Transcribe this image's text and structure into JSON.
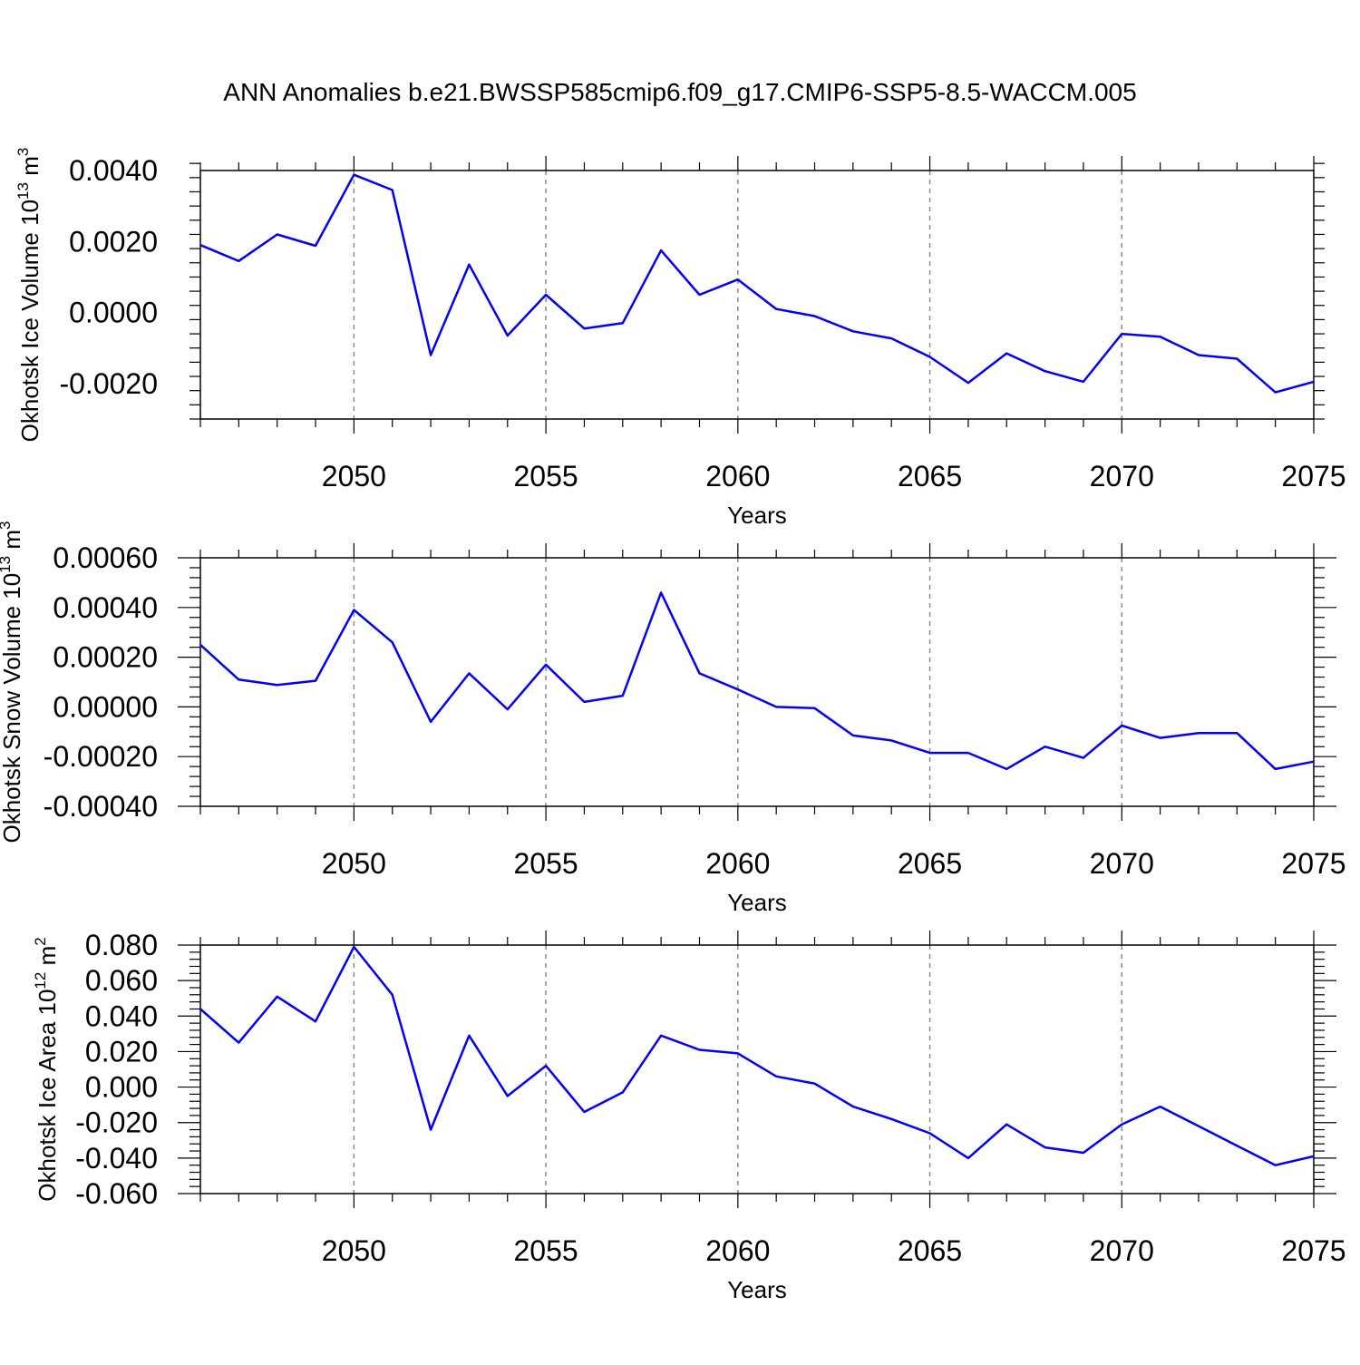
{
  "figure_title": "ANN Anomalies b.e21.BWSSP585cmip6.f09_g17.CMIP6-SSP5-8.5-WACCM.005",
  "line_color": "#0000ff",
  "grid_color": "#888888",
  "chart_data": [
    {
      "type": "line",
      "name": "ice-volume",
      "ylabel": "Okhotsk Ice Volume 10",
      "ylabel_exp": "13",
      "ylabel_unit": "m",
      "ylabel_unit_exp": "3",
      "xlabel": "Years",
      "xlim": [
        2046,
        2075
      ],
      "ylim": [
        -0.003,
        0.004
      ],
      "yticks": [
        0.004,
        0.002,
        0.0,
        -0.002
      ],
      "yticklabels": [
        "0.0040",
        "0.0020",
        "0.0000",
        "-0.0020"
      ],
      "xticks": [
        2050,
        2055,
        2060,
        2065,
        2070,
        2075
      ],
      "xticklabels": [
        "2050",
        "2055",
        "2060",
        "2065",
        "2070",
        "2075"
      ],
      "x": [
        2046,
        2047,
        2048,
        2049,
        2050,
        2051,
        2052,
        2053,
        2054,
        2055,
        2056,
        2057,
        2058,
        2059,
        2060,
        2061,
        2062,
        2063,
        2064,
        2065,
        2066,
        2067,
        2068,
        2069,
        2070,
        2071,
        2072,
        2073,
        2074,
        2075
      ],
      "y": [
        0.0019,
        0.00145,
        0.0022,
        0.00188,
        0.00388,
        0.00345,
        -0.0012,
        0.00135,
        -0.00065,
        0.0005,
        -0.00045,
        -0.0003,
        0.00175,
        0.0005,
        0.00093,
        0.0001,
        -0.0001,
        -0.00053,
        -0.00073,
        -0.00125,
        -0.00198,
        -0.00115,
        -0.00165,
        -0.00195,
        -0.0006,
        -0.00068,
        -0.0012,
        -0.0013,
        -0.00225,
        -0.00195
      ]
    },
    {
      "type": "line",
      "name": "snow-volume",
      "ylabel": "Okhotsk Snow Volume 10",
      "ylabel_exp": "13",
      "ylabel_unit": "m",
      "ylabel_unit_exp": "3",
      "xlabel": "Years",
      "xlim": [
        2046,
        2075
      ],
      "ylim": [
        -0.0004,
        0.0006
      ],
      "yticks": [
        0.0006,
        0.0004,
        0.0002,
        0.0,
        -0.0002,
        -0.0004
      ],
      "yticklabels": [
        "0.00060",
        "0.00040",
        "0.00020",
        "0.00000",
        "-0.00020",
        "-0.00040"
      ],
      "xticks": [
        2050,
        2055,
        2060,
        2065,
        2070,
        2075
      ],
      "xticklabels": [
        "2050",
        "2055",
        "2060",
        "2065",
        "2070",
        "2075"
      ],
      "x": [
        2046,
        2047,
        2048,
        2049,
        2050,
        2051,
        2052,
        2053,
        2054,
        2055,
        2056,
        2057,
        2058,
        2059,
        2060,
        2061,
        2062,
        2063,
        2064,
        2065,
        2066,
        2067,
        2068,
        2069,
        2070,
        2071,
        2072,
        2073,
        2074,
        2075
      ],
      "y": [
        0.00025,
        0.00011,
        8.8e-05,
        0.000105,
        0.00039,
        0.00026,
        -6e-05,
        0.000135,
        -1e-05,
        0.00017,
        2e-05,
        4.5e-05,
        0.00046,
        0.000135,
        7e-05,
        0.0,
        -5e-06,
        -0.000115,
        -0.000135,
        -0.000185,
        -0.000185,
        -0.00025,
        -0.00016,
        -0.000205,
        -7.5e-05,
        -0.000125,
        -0.000105,
        -0.000105,
        -0.00025,
        -0.00022
      ]
    },
    {
      "type": "line",
      "name": "ice-area",
      "ylabel": "Okhotsk Ice Area 10",
      "ylabel_exp": "12",
      "ylabel_unit": "m",
      "ylabel_unit_exp": "2",
      "xlabel": "Years",
      "xlim": [
        2046,
        2075
      ],
      "ylim": [
        -0.06,
        0.08
      ],
      "yticks": [
        0.08,
        0.06,
        0.04,
        0.02,
        0.0,
        -0.02,
        -0.04,
        -0.06
      ],
      "yticklabels": [
        "0.080",
        "0.060",
        "0.040",
        "0.020",
        "0.000",
        "-0.020",
        "-0.040",
        "-0.060"
      ],
      "xticks": [
        2050,
        2055,
        2060,
        2065,
        2070,
        2075
      ],
      "xticklabels": [
        "2050",
        "2055",
        "2060",
        "2065",
        "2070",
        "2075"
      ],
      "x": [
        2046,
        2047,
        2048,
        2049,
        2050,
        2051,
        2052,
        2053,
        2054,
        2055,
        2056,
        2057,
        2058,
        2059,
        2060,
        2061,
        2062,
        2063,
        2064,
        2065,
        2066,
        2067,
        2068,
        2069,
        2070,
        2071,
        2072,
        2073,
        2074,
        2075
      ],
      "y": [
        0.044,
        0.025,
        0.051,
        0.037,
        0.079,
        0.052,
        -0.024,
        0.029,
        -0.005,
        0.012,
        -0.014,
        -0.003,
        0.029,
        0.021,
        0.019,
        0.006,
        0.002,
        -0.011,
        -0.018,
        -0.026,
        -0.04,
        -0.021,
        -0.034,
        -0.037,
        -0.021,
        -0.011,
        -0.022,
        -0.033,
        -0.044,
        -0.039
      ]
    }
  ]
}
